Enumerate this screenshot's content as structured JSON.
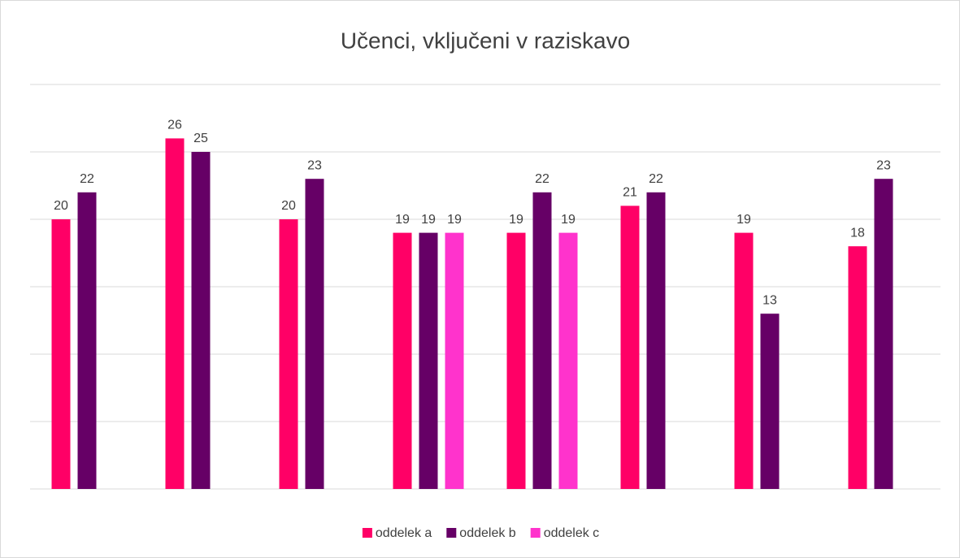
{
  "chart_data": {
    "type": "bar",
    "title": "Učenci, vključeni v raziskavo",
    "categories": [
      null,
      null,
      null,
      null,
      null,
      null,
      null,
      null
    ],
    "series": [
      {
        "name": "oddelek a",
        "color": "#ff0066",
        "values": [
          20,
          26,
          20,
          19,
          19,
          21,
          19,
          18
        ]
      },
      {
        "name": "oddelek b",
        "color": "#660066",
        "values": [
          22,
          25,
          23,
          19,
          22,
          22,
          13,
          23
        ]
      },
      {
        "name": "oddelek c",
        "color": "#ff33cc",
        "values": [
          null,
          null,
          null,
          19,
          19,
          null,
          null,
          null
        ]
      }
    ],
    "ylim": [
      0,
      30
    ],
    "yticks": [
      0,
      5,
      10,
      15,
      20,
      25,
      30
    ],
    "grid": true,
    "legend": "bottom"
  }
}
